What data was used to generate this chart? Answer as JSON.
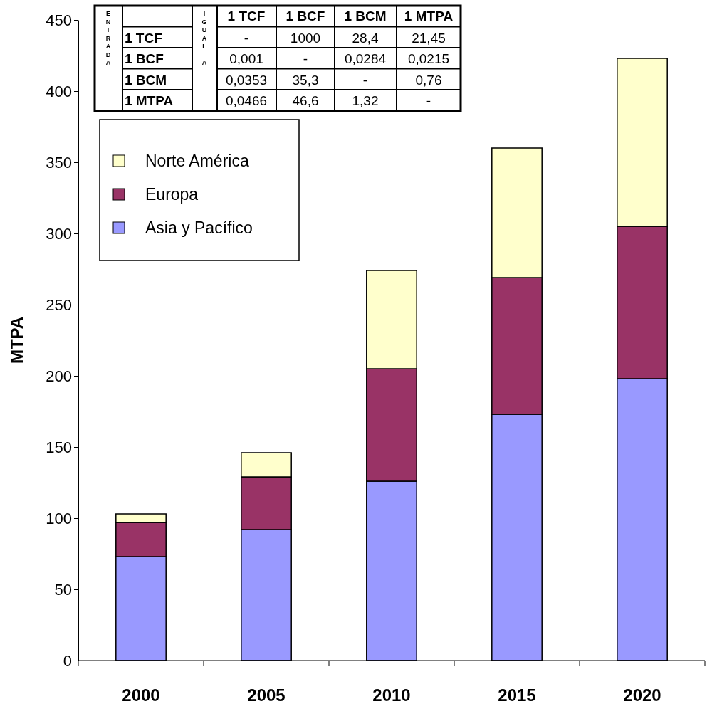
{
  "chart_data": [
    {
      "type": "bar",
      "stacked": true,
      "categories": [
        "2000",
        "2005",
        "2010",
        "2015",
        "2020"
      ],
      "ylabel": "MTPA",
      "ylim": [
        0,
        450
      ],
      "yticks": [
        0,
        50,
        100,
        150,
        200,
        250,
        300,
        350,
        400,
        450
      ],
      "legend": "top left",
      "grid": false,
      "series": [
        {
          "name": "Asia y Pacífico",
          "color": "#9999ff",
          "values": [
            73,
            92,
            126,
            173,
            198
          ]
        },
        {
          "name": "Europa",
          "color": "#993366",
          "values": [
            24,
            37,
            79,
            96,
            107
          ]
        },
        {
          "name": "Norte América",
          "color": "#ffffcc",
          "values": [
            6,
            17,
            69,
            91,
            118
          ]
        }
      ]
    },
    {
      "type": "other",
      "categories": [
        "1 TCF",
        "1 BCF",
        "1 BCM",
        "1 MTPA"
      ],
      "y_categories": [
        "1 TCF",
        "1 BCF",
        "1 BCM",
        "1 MTPA"
      ],
      "cell_labels": [
        [
          "-",
          "1000",
          "28,4",
          "21,45"
        ],
        [
          "0,001",
          "-",
          "0,0284",
          "0,0215"
        ],
        [
          "0,0353",
          "35,3",
          "-",
          "0,76"
        ],
        [
          "0,0466",
          "46,6",
          "1,32",
          "-"
        ]
      ],
      "annotations": [
        "ENTRADA",
        "IGUAL A"
      ]
    }
  ]
}
